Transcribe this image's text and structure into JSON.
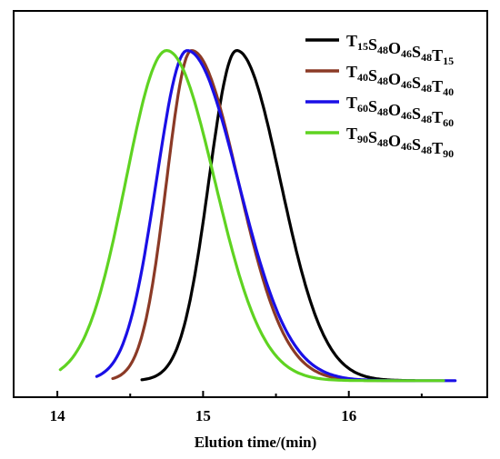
{
  "chart_data": {
    "type": "line",
    "title": "",
    "xlabel": "Elution time/(min)",
    "ylabel": "",
    "xlim": [
      13.7,
      16.95
    ],
    "ylim": [
      -0.05,
      1.12
    ],
    "xticks": [
      14,
      15,
      16
    ],
    "y_ticks_visible": false,
    "grid": false,
    "legend_position": "top-right",
    "series": [
      {
        "name": "T15S48O46S48T15",
        "legend_parts": [
          [
            "T",
            "15"
          ],
          [
            "S",
            "48"
          ],
          [
            "O",
            "46"
          ],
          [
            "S",
            "48"
          ],
          [
            "T",
            "15"
          ]
        ],
        "color": "#000000",
        "x_start": 14.58,
        "x_end": 16.45,
        "peak": 15.23,
        "sigma_left": 0.19,
        "sigma_right": 0.3
      },
      {
        "name": "T40S48O46S48T40",
        "legend_parts": [
          [
            "T",
            "40"
          ],
          [
            "S",
            "48"
          ],
          [
            "O",
            "46"
          ],
          [
            "S",
            "48"
          ],
          [
            "T",
            "40"
          ]
        ],
        "color": "#8b3a26",
        "x_start": 14.38,
        "x_end": 16.35,
        "peak": 14.92,
        "sigma_left": 0.17,
        "sigma_right": 0.32
      },
      {
        "name": "T60S48O46S48T60",
        "legend_parts": [
          [
            "T",
            "60"
          ],
          [
            "S",
            "48"
          ],
          [
            "O",
            "46"
          ],
          [
            "S",
            "48"
          ],
          [
            "T",
            "60"
          ]
        ],
        "color": "#1a0fe6",
        "x_start": 14.27,
        "x_end": 16.73,
        "peak": 14.89,
        "sigma_left": 0.21,
        "sigma_right": 0.35
      },
      {
        "name": "T90S48O46S48T90",
        "legend_parts": [
          [
            "T",
            "90"
          ],
          [
            "S",
            "48"
          ],
          [
            "O",
            "46"
          ],
          [
            "S",
            "48"
          ],
          [
            "T",
            "90"
          ]
        ],
        "color": "#5fd321",
        "x_start": 14.02,
        "x_end": 16.65,
        "peak": 14.75,
        "sigma_left": 0.28,
        "sigma_right": 0.33
      }
    ]
  }
}
